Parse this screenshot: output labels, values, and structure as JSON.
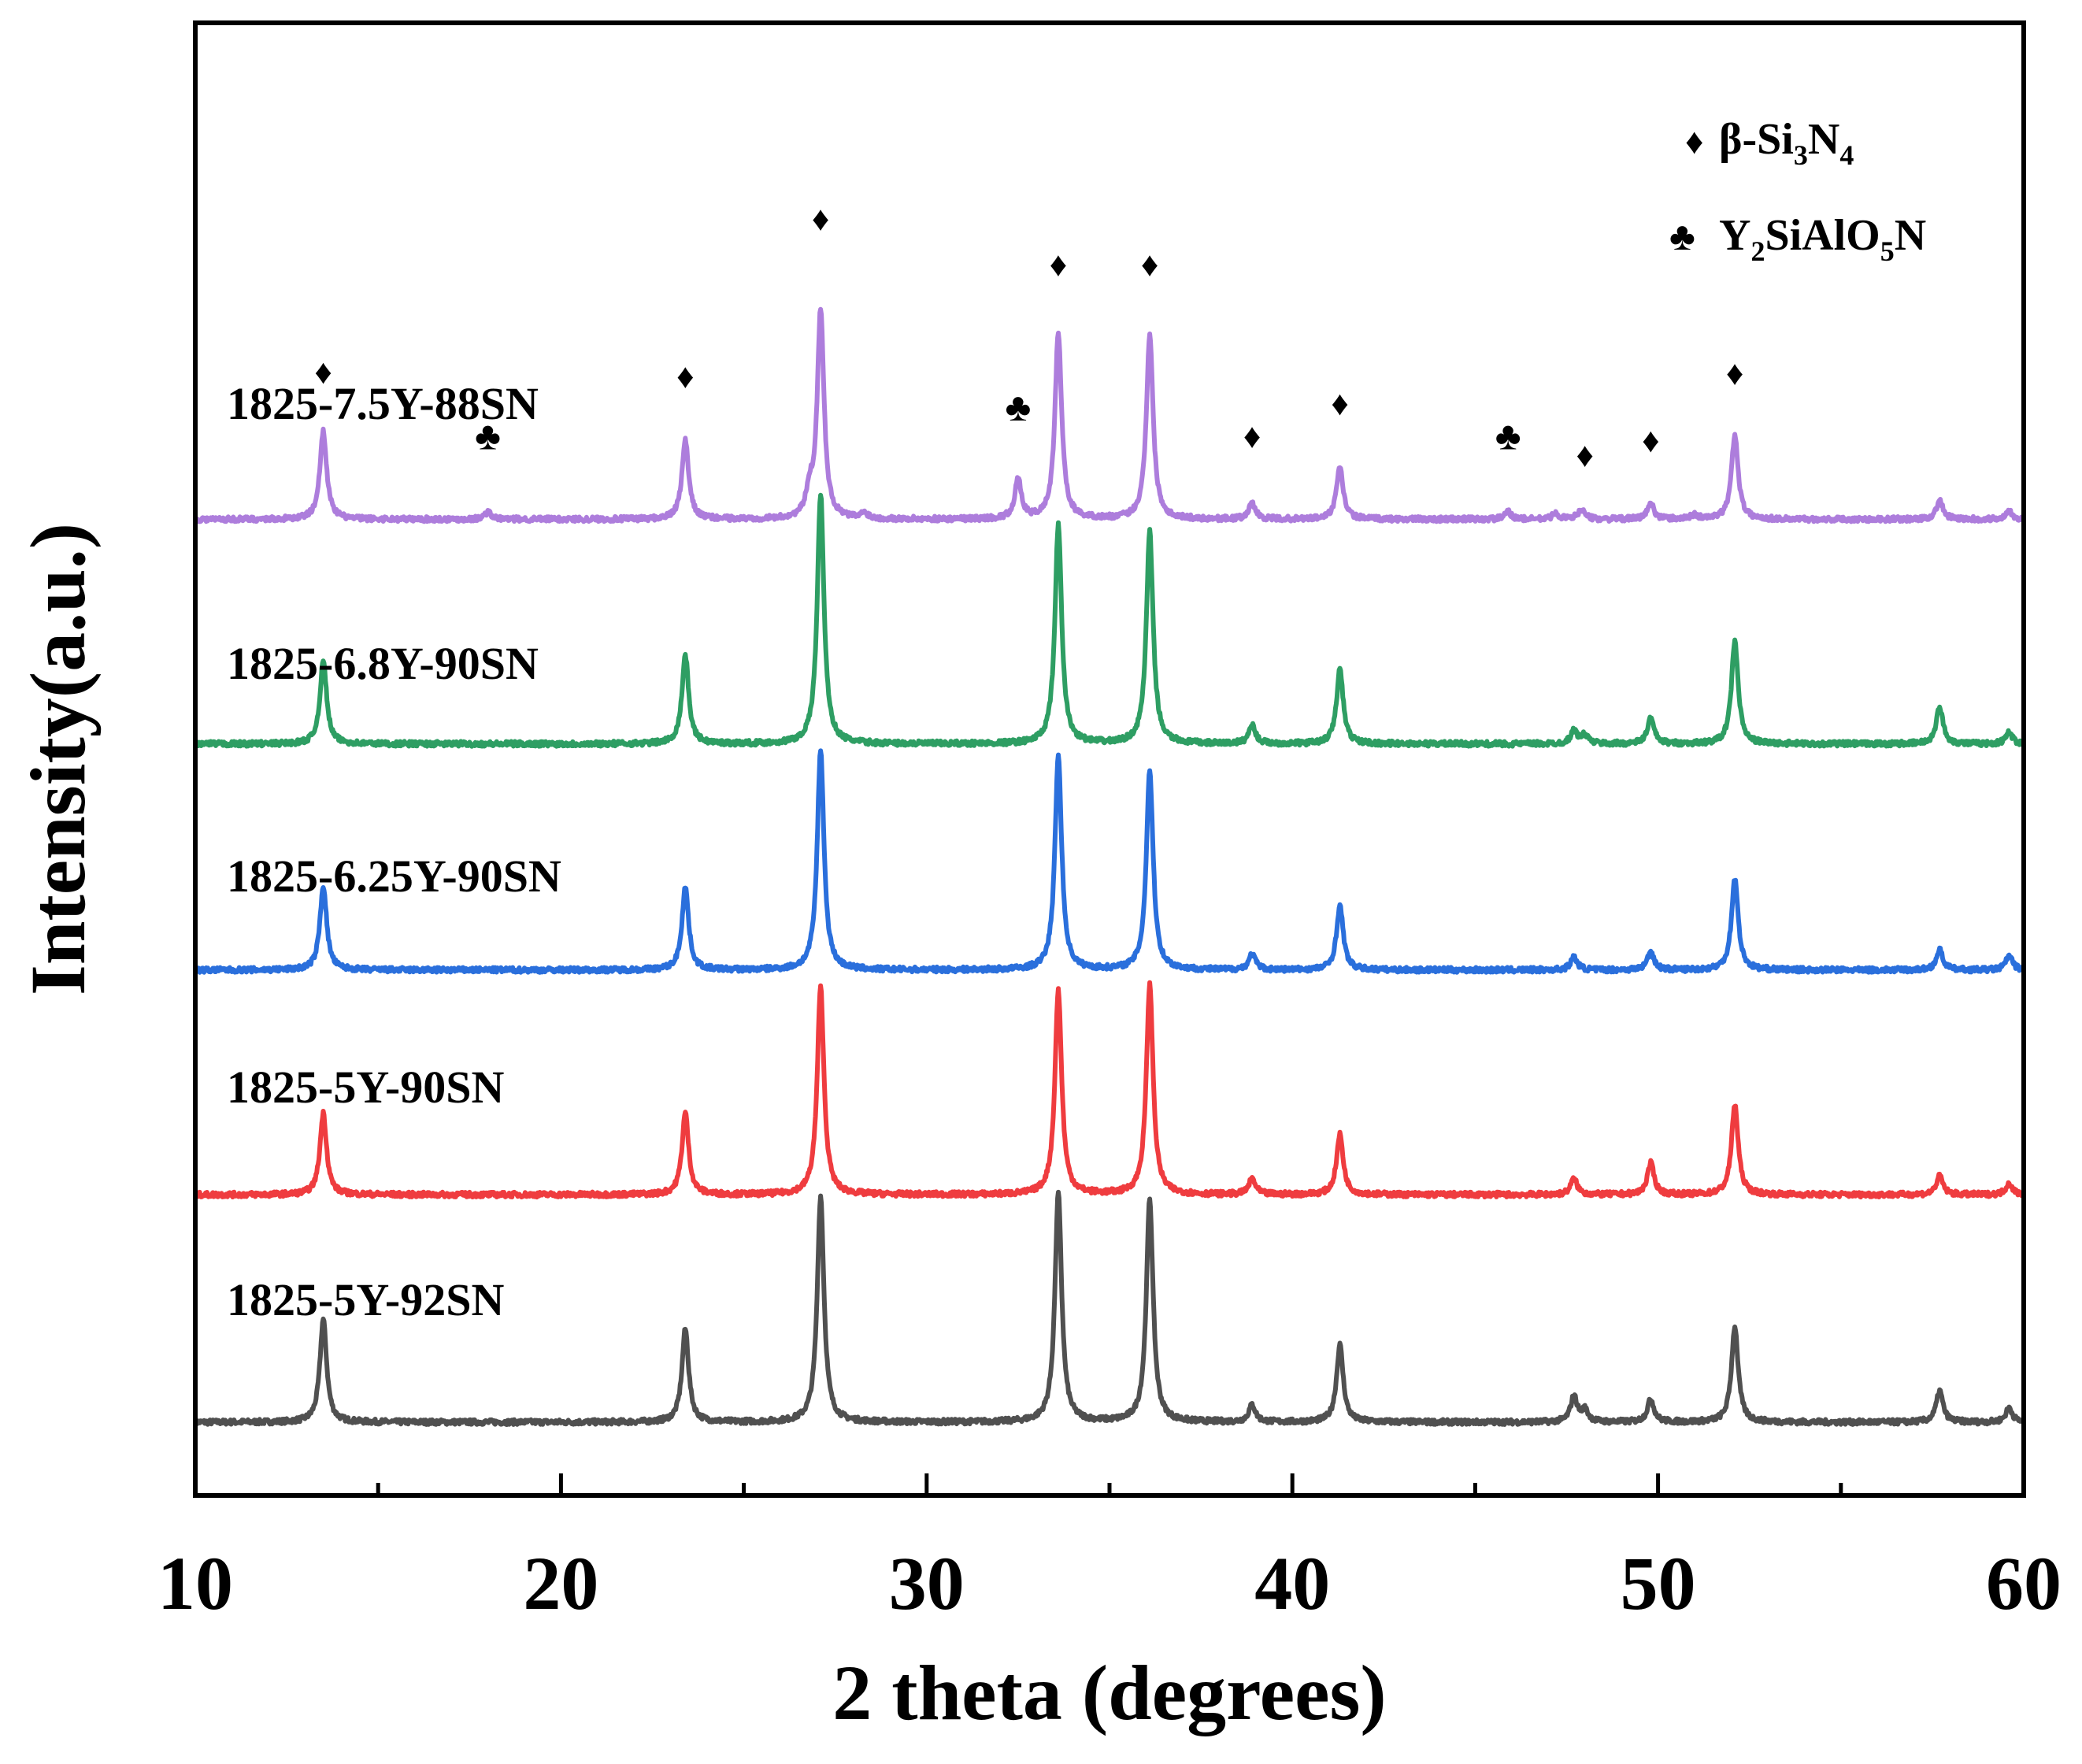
{
  "chart_data": {
    "type": "line",
    "title": "",
    "xlabel": "2 theta (degrees)",
    "ylabel": "Intensity(a.u.)",
    "xlim": [
      10,
      60
    ],
    "xticks": [
      10,
      20,
      30,
      40,
      50,
      60
    ],
    "x_tick_labels": [
      "10",
      "20",
      "30",
      "40",
      "50",
      "60"
    ],
    "y_units": "normalized intensity (0 = lowest baseline, 1 = top of plot frame), offset stacked",
    "grid": false,
    "legend": {
      "position": "top-right",
      "entries": [
        {
          "symbol": "♦",
          "label": "β-Si",
          "sub1": "3",
          "mid": "N",
          "sub2": "4",
          "phase": "beta-Si3N4"
        },
        {
          "symbol": "♣",
          "label": "Y",
          "sub1": "2",
          "mid": "SiAlO",
          "sub2": "5",
          "tail": "N",
          "phase": "Y2SiAlO5N"
        }
      ]
    },
    "colors": {
      "1825-5Y-92SN": "#505050",
      "1825-5Y-90SN": "#ef3c3f",
      "1825-6.25Y-90SN": "#2a6fdc",
      "1825-6.8Y-90SN": "#2e9e63",
      "1825-7.5Y-88SN": "#ad7ddc"
    },
    "series": [
      {
        "name": "1825-5Y-92SN",
        "baseline": 0.022,
        "peaks": [
          [
            13.5,
            0.072
          ],
          [
            23.4,
            0.065
          ],
          [
            27.1,
            0.158
          ],
          [
            33.6,
            0.16
          ],
          [
            36.1,
            0.156
          ],
          [
            38.9,
            0.012
          ],
          [
            41.3,
            0.054
          ],
          [
            47.7,
            0.018
          ],
          [
            48.0,
            0.008
          ],
          [
            49.8,
            0.016
          ],
          [
            52.1,
            0.067
          ],
          [
            57.7,
            0.022
          ],
          [
            59.6,
            0.01
          ]
        ]
      },
      {
        "name": "1825-5Y-90SN",
        "baseline": 0.181,
        "peaks": [
          [
            13.5,
            0.057
          ],
          [
            23.4,
            0.057
          ],
          [
            27.1,
            0.145
          ],
          [
            33.6,
            0.143
          ],
          [
            36.1,
            0.147
          ],
          [
            38.9,
            0.011
          ],
          [
            41.3,
            0.042
          ],
          [
            47.7,
            0.011
          ],
          [
            49.8,
            0.022
          ],
          [
            52.1,
            0.063
          ],
          [
            57.7,
            0.013
          ],
          [
            59.6,
            0.008
          ]
        ]
      },
      {
        "name": "1825-6.25Y-90SN",
        "baseline": 0.338,
        "peaks": [
          [
            13.5,
            0.059
          ],
          [
            23.4,
            0.058
          ],
          [
            27.1,
            0.154
          ],
          [
            33.6,
            0.15
          ],
          [
            36.1,
            0.14
          ],
          [
            38.9,
            0.011
          ],
          [
            41.3,
            0.045
          ],
          [
            47.7,
            0.009
          ],
          [
            49.8,
            0.013
          ],
          [
            52.1,
            0.064
          ],
          [
            57.7,
            0.014
          ],
          [
            59.6,
            0.01
          ]
        ]
      },
      {
        "name": "1825-6.8Y-90SN",
        "baseline": 0.496,
        "peaks": [
          [
            13.5,
            0.058
          ],
          [
            23.4,
            0.062
          ],
          [
            27.1,
            0.175
          ],
          [
            33.6,
            0.153
          ],
          [
            36.1,
            0.148
          ],
          [
            38.9,
            0.013
          ],
          [
            41.3,
            0.052
          ],
          [
            47.7,
            0.009
          ],
          [
            48.0,
            0.006
          ],
          [
            49.8,
            0.018
          ],
          [
            52.1,
            0.072
          ],
          [
            57.7,
            0.026
          ],
          [
            59.6,
            0.008
          ]
        ]
      },
      {
        "name": "1825-7.5Y-88SN",
        "baseline": 0.653,
        "peaks": [
          [
            13.5,
            0.062
          ],
          [
            18.0,
            0.005
          ],
          [
            23.4,
            0.055
          ],
          [
            26.8,
            0.016
          ],
          [
            27.1,
            0.146
          ],
          [
            28.3,
            0.004
          ],
          [
            32.5,
            0.027
          ],
          [
            33.6,
            0.13
          ],
          [
            36.1,
            0.129
          ],
          [
            38.9,
            0.011
          ],
          [
            41.3,
            0.036
          ],
          [
            45.9,
            0.005
          ],
          [
            47.2,
            0.004
          ],
          [
            47.9,
            0.007
          ],
          [
            49.8,
            0.011
          ],
          [
            51.0,
            0.003
          ],
          [
            52.1,
            0.059
          ],
          [
            57.7,
            0.013
          ],
          [
            59.6,
            0.006
          ]
        ]
      }
    ],
    "annotations": [
      {
        "symbol": "♦",
        "x": 13.5,
        "y": 0.748,
        "phase": "beta-Si3N4"
      },
      {
        "symbol": "♣",
        "x": 18.0,
        "y": 0.702,
        "phase": "Y2SiAlO5N"
      },
      {
        "symbol": "♦",
        "x": 23.4,
        "y": 0.745,
        "phase": "beta-Si3N4"
      },
      {
        "symbol": "♦",
        "x": 27.1,
        "y": 0.855,
        "phase": "beta-Si3N4"
      },
      {
        "symbol": "♣",
        "x": 32.5,
        "y": 0.722,
        "phase": "Y2SiAlO5N"
      },
      {
        "symbol": "♦",
        "x": 33.6,
        "y": 0.823,
        "phase": "beta-Si3N4"
      },
      {
        "symbol": "♦",
        "x": 36.1,
        "y": 0.823,
        "phase": "beta-Si3N4"
      },
      {
        "symbol": "♦",
        "x": 38.9,
        "y": 0.703,
        "phase": "beta-Si3N4"
      },
      {
        "symbol": "♦",
        "x": 41.3,
        "y": 0.726,
        "phase": "beta-Si3N4"
      },
      {
        "symbol": "♣",
        "x": 45.9,
        "y": 0.702,
        "phase": "Y2SiAlO5N"
      },
      {
        "symbol": "♦",
        "x": 48.0,
        "y": 0.69,
        "phase": "beta-Si3N4"
      },
      {
        "symbol": "♦",
        "x": 49.8,
        "y": 0.7,
        "phase": "beta-Si3N4"
      },
      {
        "symbol": "♦",
        "x": 52.1,
        "y": 0.747,
        "phase": "beta-Si3N4"
      }
    ]
  }
}
